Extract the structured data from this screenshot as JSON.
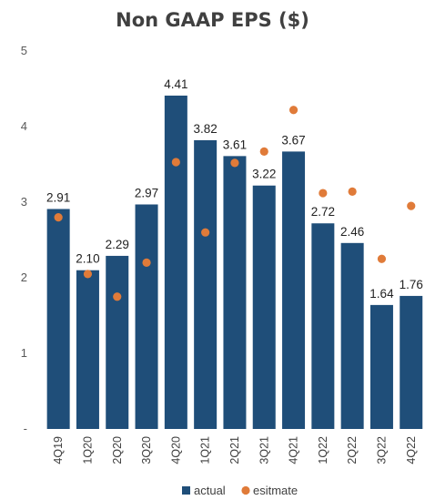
{
  "chart_data": {
    "type": "bar",
    "title": "Non GAAP EPS ($)",
    "xlabel": "",
    "ylabel": "",
    "categories": [
      "4Q19",
      "1Q20",
      "2Q20",
      "3Q20",
      "4Q20",
      "1Q21",
      "2Q21",
      "3Q21",
      "4Q21",
      "1Q22",
      "2Q22",
      "3Q22",
      "4Q22"
    ],
    "y_tick_labels": [
      "-",
      "1",
      "2",
      "3",
      "4",
      "5"
    ],
    "ylim": [
      0,
      5
    ],
    "grid": false,
    "legend_position": "bottom",
    "series": [
      {
        "name": "actual",
        "mark": "bar",
        "color": "#1F4E79",
        "values": [
          2.91,
          2.1,
          2.29,
          2.97,
          4.41,
          3.82,
          3.61,
          3.22,
          3.67,
          2.72,
          2.46,
          1.64,
          1.76
        ],
        "value_labels": [
          "2.91",
          "2.10",
          "2.29",
          "2.97",
          "4.41",
          "3.82",
          "3.61",
          "3.22",
          "3.67",
          "2.72",
          "2.46",
          "1.64",
          "1.76"
        ]
      },
      {
        "name": "esitmate",
        "mark": "dot",
        "color": "#E07B39",
        "values": [
          2.8,
          2.05,
          1.75,
          2.2,
          3.53,
          2.6,
          3.52,
          3.67,
          4.22,
          3.12,
          3.14,
          2.25,
          2.95
        ]
      }
    ]
  }
}
